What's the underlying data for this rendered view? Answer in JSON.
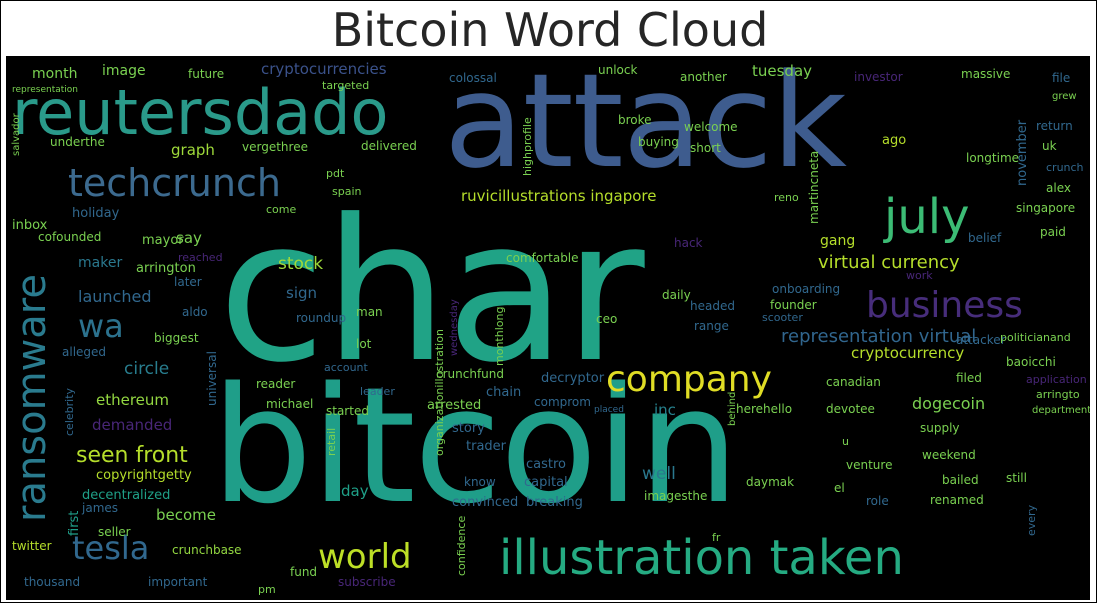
{
  "title": "Bitcoin Word Cloud",
  "words": {
    "char": "char",
    "bitcoin": "bitcoin",
    "attack": "attack",
    "reutersdado": "reutersdado",
    "illustration_taken": "illustration taken",
    "techcrunch": "techcrunch",
    "july": "july",
    "ransomware": "ransomware",
    "company": "company",
    "business": "business",
    "tesla": "tesla",
    "world": "world",
    "wa": "wa",
    "virtual_currency": "virtual currency",
    "representation_virtual": "representation virtual",
    "ruvicillustrations_ingapore": "ruvicillustrations ingapore",
    "cryptocurrencies": "cryptocurrencies",
    "seen_front": "seen front",
    "cryptocurrency": "cryptocurrency",
    "graph": "graph",
    "stock": "stock",
    "launched": "launched",
    "ethereum": "ethereum",
    "circle": "circle",
    "demanded": "demanded",
    "copyrightgetty": "copyrightgetty",
    "decentralized": "decentralized",
    "become": "become",
    "day": "day",
    "month": "month",
    "image": "image",
    "future": "future",
    "tuesday": "tuesday",
    "gang": "gang",
    "sign": "sign",
    "maker": "maker",
    "say": "say",
    "inc": "inc",
    "well": "well",
    "dogecoin": "dogecoin",
    "ago": "ago",
    "november": "november",
    "crunchbase": "crunchbase",
    "twitter": "twitter",
    "first": "first",
    "convinced": "convinced",
    "breaking": "breaking",
    "capital": "capital",
    "story": "story",
    "arrested": "arrested",
    "chain": "chain",
    "trader": "trader",
    "castro": "castro",
    "fund": "fund",
    "subscribe": "subscribe",
    "holiday": "holiday",
    "inbox": "inbox",
    "cofounded": "cofounded",
    "mayor": "mayor",
    "arrington": "arrington",
    "later": "later",
    "aldo": "aldo",
    "biggest": "biggest",
    "alleged": "alleged",
    "reader": "reader",
    "michael": "michael",
    "started": "started",
    "vergethree": "vergethree",
    "delivered": "delivered",
    "comfortable": "comfortable",
    "roundup": "roundup",
    "man": "man",
    "lot": "lot",
    "decryptor": "decryptor",
    "comprom": "comprom",
    "crunchfund": "crunchfund",
    "universal": "universal",
    "ceo": "ceo",
    "founder": "founder",
    "headed": "headed",
    "range": "range",
    "daily": "daily",
    "hack": "hack",
    "onboarding": "onboarding",
    "canadian": "canadian",
    "attacker": "attacker",
    "baoicchi": "baoicchi",
    "filed": "filed",
    "application": "application",
    "arringto": "arringto",
    "supply": "supply",
    "devotee": "devotee",
    "herehello": "herehello",
    "venture": "venture",
    "weekend": "weekend",
    "bailed": "bailed",
    "renamed": "renamed",
    "still": "still",
    "imagesthe": "imagesthe",
    "daymak": "daymak",
    "role": "role",
    "el": "el",
    "knew": "know",
    "james": "james",
    "seller": "seller",
    "important": "important",
    "thousand": "thousand",
    "unlock": "unlock",
    "broke": "broke",
    "buying": "buying",
    "short": "short",
    "welcome": "welcome",
    "another": "another",
    "investor": "investor",
    "massive": "massive",
    "file": "file",
    "grew": "grew",
    "return": "return",
    "uk": "uk",
    "crunch": "crunch",
    "longtime": "longtime",
    "alex": "alex",
    "singapore": "singapore",
    "paid": "paid",
    "belief": "belief",
    "politicianand": "politicianand",
    "colossal": "colossal",
    "targeted": "targeted",
    "highprofile": "highprofile",
    "martincneta": "martincneta",
    "underthe": "underthe",
    "pdt": "pdt",
    "spain": "spain",
    "come": "come",
    "reno": "reno",
    "salvador": "salvador",
    "scooter": "scooter",
    "work": "work",
    "reached": "reached",
    "account": "account",
    "leader": "leader",
    "retail": "retail",
    "monthlong": "monthlong",
    "celebrity": "celebrity",
    "confidence": "confidence",
    "organizationillustration": "organizationillustration",
    "placed": "placed",
    "behind": "behind",
    "u": "u",
    "every": "every",
    "pm": "pm",
    "fr": "fr",
    "department": "department",
    "wednesday": "wednesday",
    "representation": "representation"
  }
}
